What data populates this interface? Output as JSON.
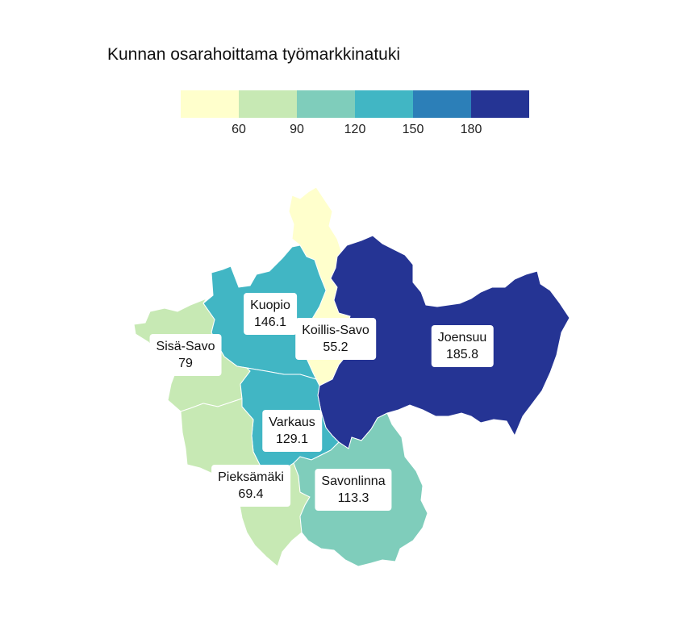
{
  "title": "Kunnan osarahoittama työmarkkinatuki",
  "legend": {
    "colors": [
      "#ffffcc",
      "#c7e9b4",
      "#7fcdbb",
      "#41b6c4",
      "#2c7fb8",
      "#253494"
    ],
    "breaks": [
      "60",
      "90",
      "120",
      "150",
      "180"
    ]
  },
  "regions": [
    {
      "name": "Kuopio",
      "value": "146.1",
      "color": "#41b6c4"
    },
    {
      "name": "Koillis-Savo",
      "value": "55.2",
      "color": "#ffffcc"
    },
    {
      "name": "Joensuu",
      "value": "185.8",
      "color": "#253494"
    },
    {
      "name": "Sisä-Savo",
      "value": "79",
      "color": "#c7e9b4"
    },
    {
      "name": "Varkaus",
      "value": "129.1",
      "color": "#41b6c4"
    },
    {
      "name": "Pieksämäki",
      "value": "69.4",
      "color": "#c7e9b4"
    },
    {
      "name": "Savonlinna",
      "value": "113.3",
      "color": "#7fcdbb"
    }
  ]
}
